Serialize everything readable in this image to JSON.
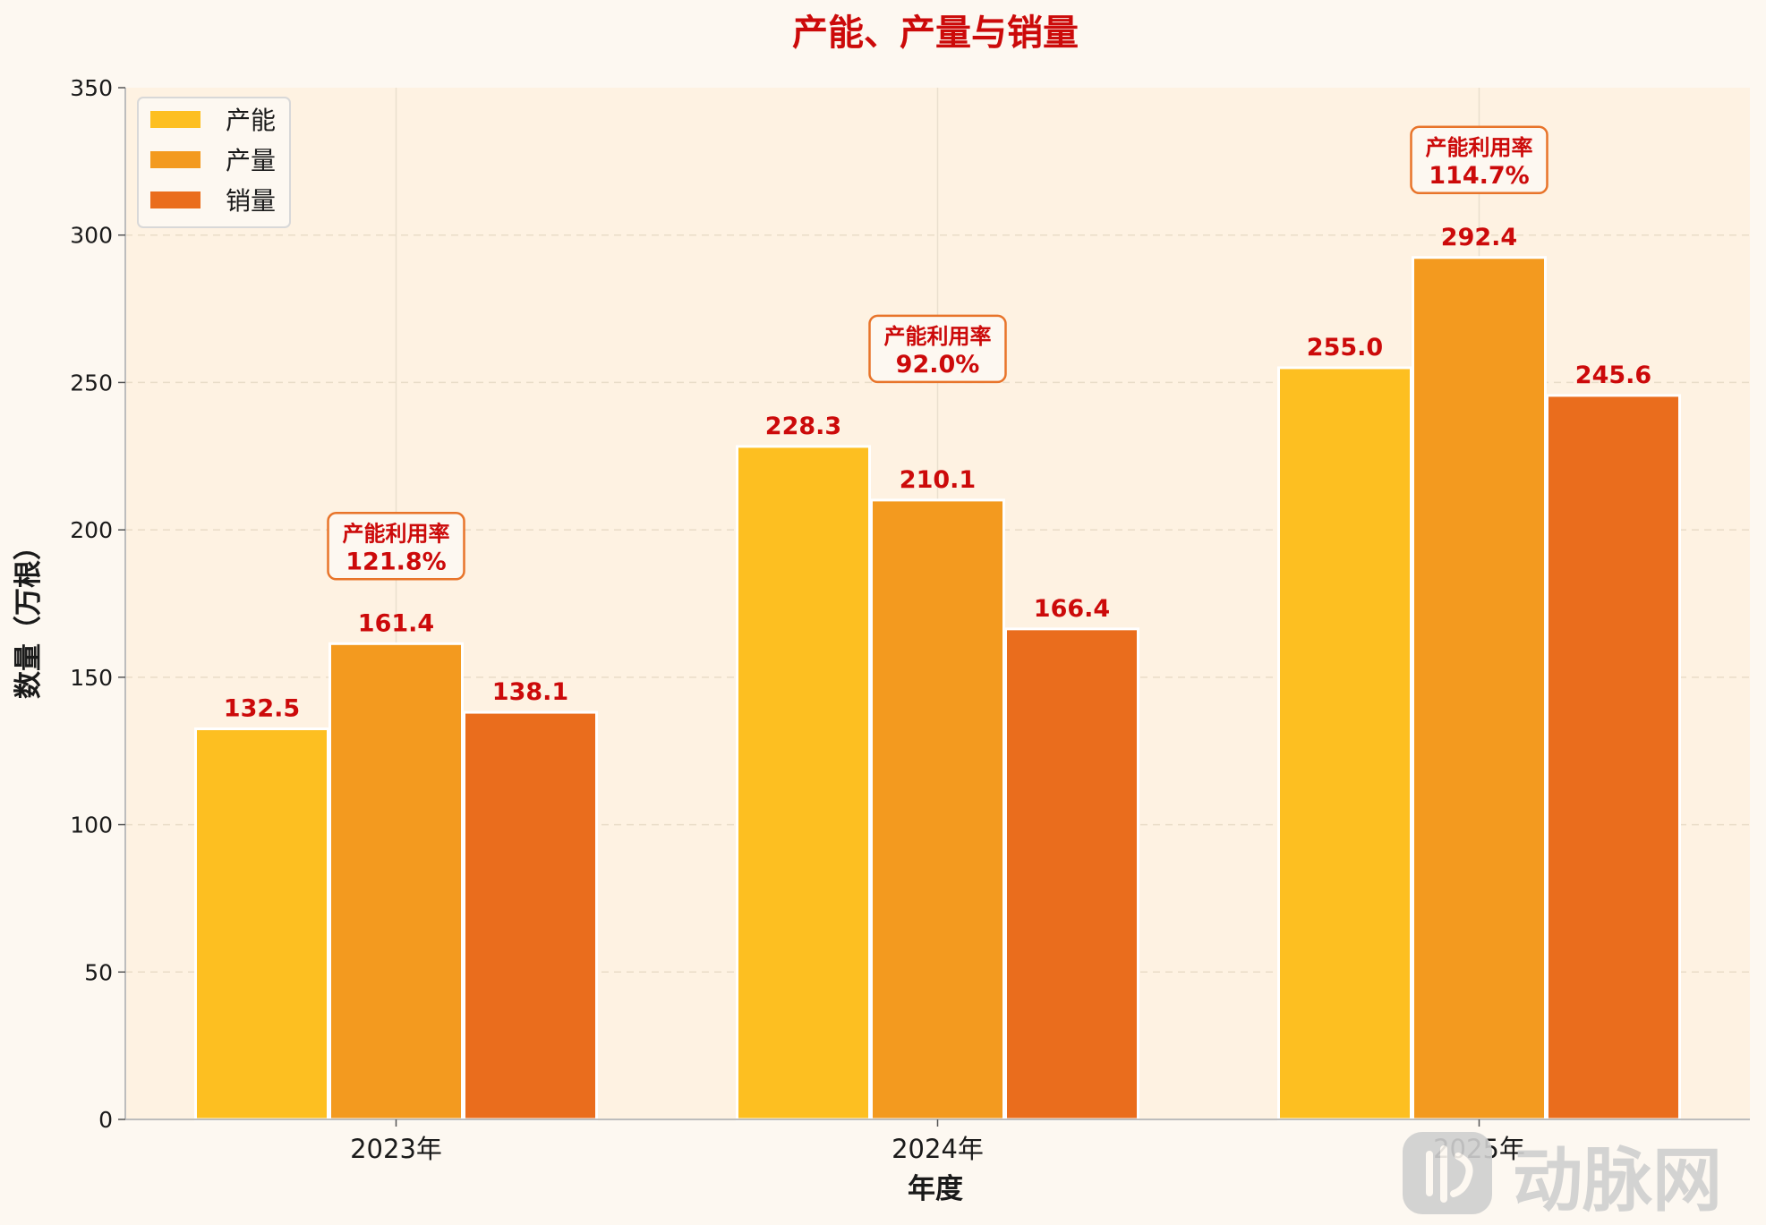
{
  "chart_data": {
    "type": "bar",
    "title": "产能、产量与销量",
    "xlabel": "年度",
    "ylabel": "数量（万根）",
    "categories": [
      "2023年",
      "2024年",
      "2025年"
    ],
    "series": [
      {
        "name": "产能",
        "values": [
          132.5,
          228.3,
          255.0
        ],
        "labels": [
          "132.5",
          "228.3",
          "255.0"
        ],
        "color": "#fdbf21"
      },
      {
        "name": "产量",
        "values": [
          161.4,
          210.1,
          292.4
        ],
        "labels": [
          "161.4",
          "210.1",
          "292.4"
        ],
        "color": "#f39a1f"
      },
      {
        "name": "销量",
        "values": [
          138.1,
          166.4,
          245.6
        ],
        "labels": [
          "138.1",
          "166.4",
          "245.6"
        ],
        "color": "#ea6d1d"
      }
    ],
    "annotations": [
      {
        "category": "2023年",
        "title": "产能利用率",
        "value": "121.8%"
      },
      {
        "category": "2024年",
        "title": "产能利用率",
        "value": "92.0%"
      },
      {
        "category": "2025年",
        "title": "产能利用率",
        "value": "114.7%"
      }
    ],
    "ylim": [
      0,
      350
    ],
    "yticks": [
      0,
      50,
      100,
      150,
      200,
      250,
      300,
      350
    ],
    "grid": true,
    "legend_position": "top-left"
  },
  "colors": {
    "page_background": "#fdf8f1",
    "plot_background": "#fef2e2",
    "title": "#cc0a0a",
    "value_label": "#cc0a0a",
    "annotation_border": "#e8742a",
    "axis": "#bdbdbd"
  },
  "watermark": {
    "icon": "logo-icon",
    "text": "动脉网"
  }
}
